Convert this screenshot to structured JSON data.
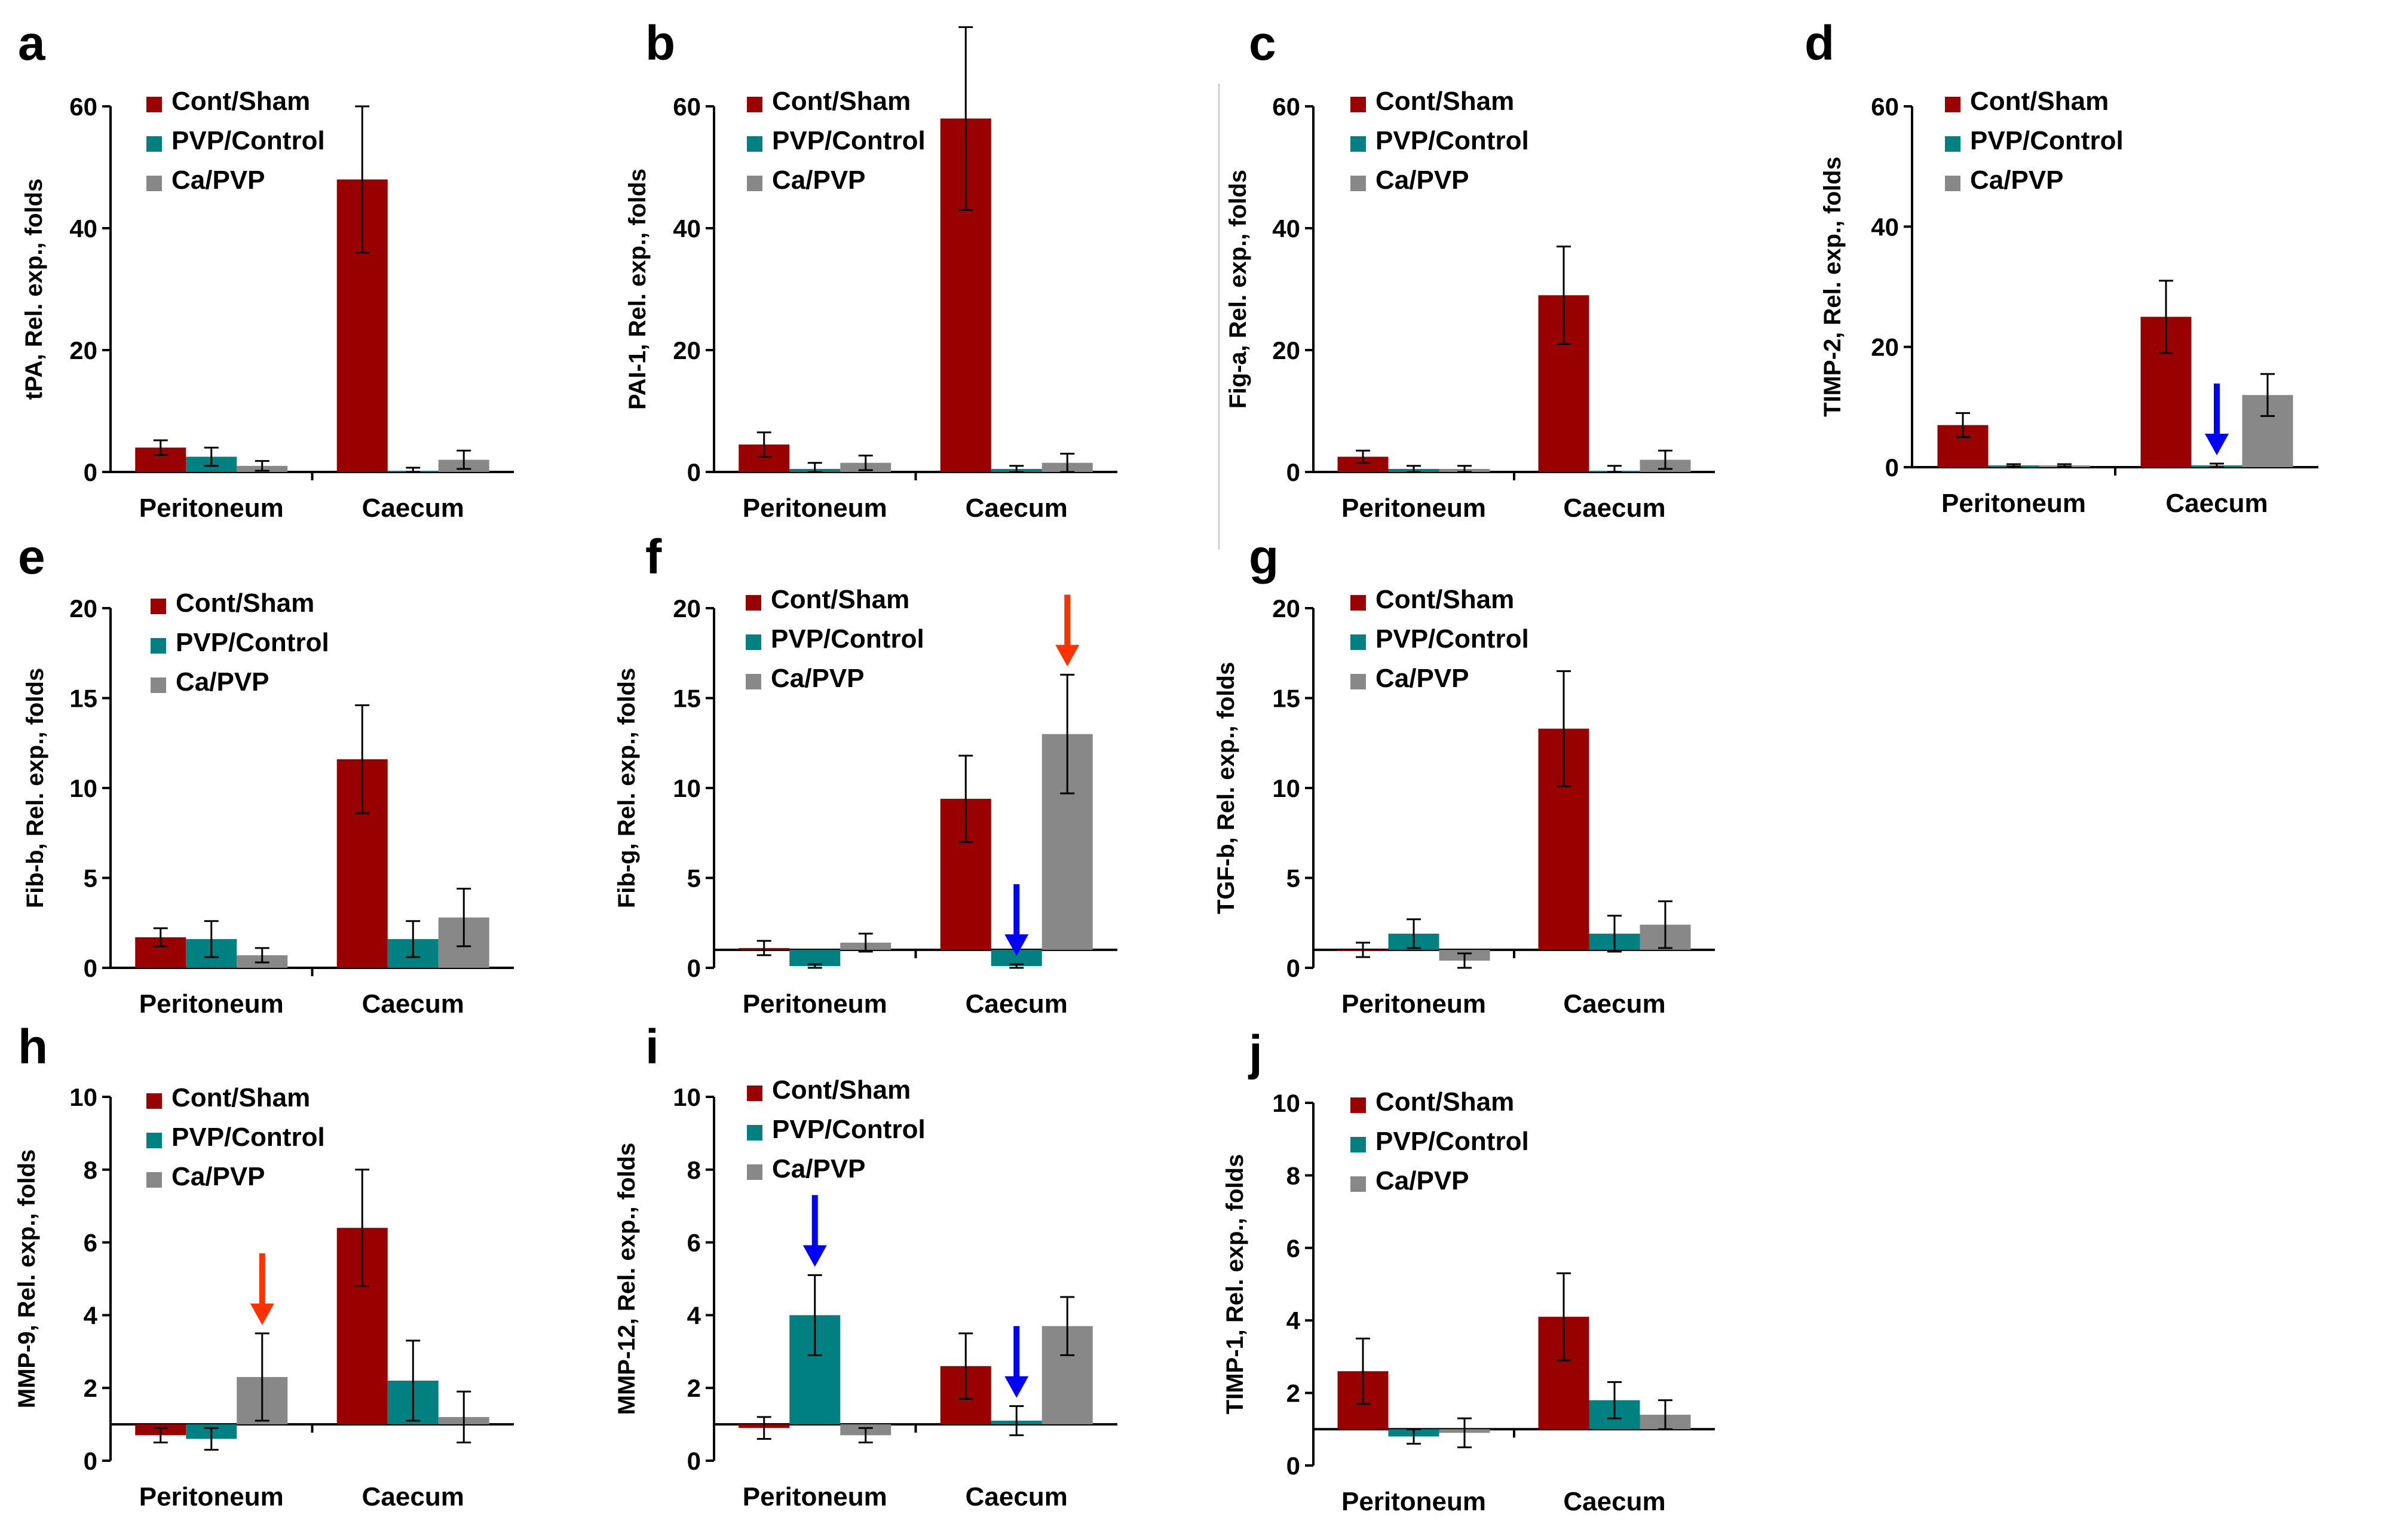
{
  "figure": {
    "colors": {
      "Cont/Sham": "#990000",
      "PVP/Control": "#008080",
      "Ca/PVP": "#888888",
      "arrow_red": "#ff3300",
      "arrow_blue": "#0000ff"
    }
  },
  "chart_data": [
    {
      "panel": "a",
      "type": "bar",
      "ylabel": "tPA, Rel. exp., folds",
      "ylim": [
        0,
        60
      ],
      "yticks": [
        0,
        20,
        40,
        60
      ],
      "baseline": 0,
      "categories": [
        "Peritoneum",
        "Caecum"
      ],
      "series": [
        {
          "name": "Cont/Sham",
          "values": [
            4,
            48
          ],
          "errors": [
            1.2,
            12
          ]
        },
        {
          "name": "PVP/Control",
          "values": [
            2.5,
            0.2
          ],
          "errors": [
            1.5,
            0.5
          ]
        },
        {
          "name": "Ca/PVP",
          "values": [
            1,
            2
          ],
          "errors": [
            0.8,
            1.5
          ]
        }
      ],
      "arrows": []
    },
    {
      "panel": "b",
      "type": "bar",
      "ylabel": "PAI-1, Rel. exp., folds",
      "ylim": [
        0,
        60
      ],
      "yticks": [
        0,
        20,
        40,
        60
      ],
      "baseline": 0,
      "categories": [
        "Peritoneum",
        "Caecum"
      ],
      "series": [
        {
          "name": "Cont/Sham",
          "values": [
            4.5,
            58
          ],
          "errors": [
            2,
            15
          ]
        },
        {
          "name": "PVP/Control",
          "values": [
            0.5,
            0.5
          ],
          "errors": [
            1,
            0.5
          ]
        },
        {
          "name": "Ca/PVP",
          "values": [
            1.5,
            1.5
          ],
          "errors": [
            1.2,
            1.5
          ]
        }
      ],
      "arrows": []
    },
    {
      "panel": "c",
      "type": "bar",
      "ylabel": "Fig-a, Rel. exp., folds",
      "ylim": [
        0,
        60
      ],
      "yticks": [
        0,
        20,
        40,
        60
      ],
      "baseline": 0,
      "categories": [
        "Peritoneum",
        "Caecum"
      ],
      "series": [
        {
          "name": "Cont/Sham",
          "values": [
            2.5,
            29
          ],
          "errors": [
            1,
            8
          ]
        },
        {
          "name": "PVP/Control",
          "values": [
            0.5,
            0.2
          ],
          "errors": [
            0.5,
            0.8
          ]
        },
        {
          "name": "Ca/PVP",
          "values": [
            0.5,
            2
          ],
          "errors": [
            0.5,
            1.5
          ]
        }
      ],
      "arrows": []
    },
    {
      "panel": "d",
      "type": "bar",
      "ylabel": "TIMP-2, Rel. exp., folds",
      "ylim": [
        0,
        60
      ],
      "yticks": [
        0,
        20,
        40,
        60
      ],
      "baseline": 0,
      "categories": [
        "Peritoneum",
        "Caecum"
      ],
      "series": [
        {
          "name": "Cont/Sham",
          "values": [
            7,
            25
          ],
          "errors": [
            2,
            6
          ]
        },
        {
          "name": "PVP/Control",
          "values": [
            0.3,
            0.3
          ],
          "errors": [
            0.2,
            0.3
          ]
        },
        {
          "name": "Ca/PVP",
          "values": [
            0.3,
            12
          ],
          "errors": [
            0.2,
            3.5
          ]
        }
      ],
      "arrows": [
        {
          "category": 1,
          "series": 1,
          "color": "blue"
        }
      ]
    },
    {
      "panel": "e",
      "type": "bar",
      "ylabel": "Fib-b, Rel. exp., folds",
      "ylim": [
        0,
        20
      ],
      "yticks": [
        0,
        5,
        10,
        15,
        20
      ],
      "baseline": 0,
      "categories": [
        "Peritoneum",
        "Caecum"
      ],
      "series": [
        {
          "name": "Cont/Sham",
          "values": [
            1.7,
            11.6
          ],
          "errors": [
            0.5,
            3
          ]
        },
        {
          "name": "PVP/Control",
          "values": [
            1.6,
            1.6
          ],
          "errors": [
            1,
            1
          ]
        },
        {
          "name": "Ca/PVP",
          "values": [
            0.7,
            2.8
          ],
          "errors": [
            0.4,
            1.6
          ]
        }
      ],
      "arrows": []
    },
    {
      "panel": "f",
      "type": "bar",
      "ylabel": "Fib-g, Rel. exp., folds",
      "ylim": [
        0,
        20
      ],
      "yticks": [
        0,
        5,
        10,
        15,
        20
      ],
      "baseline": 1,
      "categories": [
        "Peritoneum",
        "Caecum"
      ],
      "series": [
        {
          "name": "Cont/Sham",
          "values": [
            1.1,
            9.4
          ],
          "errors": [
            0.4,
            2.4
          ]
        },
        {
          "name": "PVP/Control",
          "values": [
            0.1,
            0.1
          ],
          "errors": [
            0.1,
            0.1
          ]
        },
        {
          "name": "Ca/PVP",
          "values": [
            1.4,
            13
          ],
          "errors": [
            0.5,
            3.3
          ]
        }
      ],
      "arrows": [
        {
          "category": 1,
          "series": 1,
          "color": "blue"
        },
        {
          "category": 1,
          "series": 2,
          "color": "red"
        }
      ]
    },
    {
      "panel": "g",
      "type": "bar",
      "ylabel": "TGF-b, Rel. exp., folds",
      "ylim": [
        0,
        20
      ],
      "yticks": [
        0,
        5,
        10,
        15,
        20
      ],
      "baseline": 1,
      "categories": [
        "Peritoneum",
        "Caecum"
      ],
      "series": [
        {
          "name": "Cont/Sham",
          "values": [
            1,
            13.3
          ],
          "errors": [
            0.4,
            3.2
          ]
        },
        {
          "name": "PVP/Control",
          "values": [
            1.9,
            1.9
          ],
          "errors": [
            0.8,
            1
          ]
        },
        {
          "name": "Ca/PVP",
          "values": [
            0.4,
            2.4
          ],
          "errors": [
            0.4,
            1.3
          ]
        }
      ],
      "arrows": []
    },
    {
      "panel": "h",
      "type": "bar",
      "ylabel": "MMP-9, Rel. exp., folds",
      "ylim": [
        0,
        10
      ],
      "yticks": [
        0,
        2,
        4,
        6,
        8,
        10
      ],
      "baseline": 1,
      "categories": [
        "Peritoneum",
        "Caecum"
      ],
      "series": [
        {
          "name": "Cont/Sham",
          "values": [
            0.7,
            6.4
          ],
          "errors": [
            0.2,
            1.6
          ]
        },
        {
          "name": "PVP/Control",
          "values": [
            0.6,
            2.2
          ],
          "errors": [
            0.3,
            1.1
          ]
        },
        {
          "name": "Ca/PVP",
          "values": [
            2.3,
            1.2
          ],
          "errors": [
            1.2,
            0.7
          ]
        }
      ],
      "arrows": [
        {
          "category": 0,
          "series": 2,
          "color": "red"
        }
      ]
    },
    {
      "panel": "i",
      "type": "bar",
      "ylabel": "MMP-12, Rel. exp., folds",
      "ylim": [
        0,
        10
      ],
      "yticks": [
        0,
        2,
        4,
        6,
        8,
        10
      ],
      "baseline": 1,
      "categories": [
        "Peritoneum",
        "Caecum"
      ],
      "series": [
        {
          "name": "Cont/Sham",
          "values": [
            0.9,
            2.6
          ],
          "errors": [
            0.3,
            0.9
          ]
        },
        {
          "name": "PVP/Control",
          "values": [
            4,
            1.1
          ],
          "errors": [
            1.1,
            0.4
          ]
        },
        {
          "name": "Ca/PVP",
          "values": [
            0.7,
            3.7
          ],
          "errors": [
            0.2,
            0.8
          ]
        }
      ],
      "arrows": [
        {
          "category": 0,
          "series": 1,
          "color": "blue"
        },
        {
          "category": 1,
          "series": 1,
          "color": "blue"
        }
      ]
    },
    {
      "panel": "j",
      "type": "bar",
      "ylabel": "TIMP-1, Rel. exp., folds",
      "ylim": [
        0,
        10
      ],
      "yticks": [
        0,
        2,
        4,
        6,
        8,
        10
      ],
      "baseline": 1,
      "categories": [
        "Peritoneum",
        "Caecum"
      ],
      "series": [
        {
          "name": "Cont/Sham",
          "values": [
            2.6,
            4.1
          ],
          "errors": [
            0.9,
            1.2
          ]
        },
        {
          "name": "PVP/Control",
          "values": [
            0.8,
            1.8
          ],
          "errors": [
            0.2,
            0.5
          ]
        },
        {
          "name": "Ca/PVP",
          "values": [
            0.9,
            1.4
          ],
          "errors": [
            0.4,
            0.4
          ]
        }
      ],
      "arrows": []
    }
  ]
}
